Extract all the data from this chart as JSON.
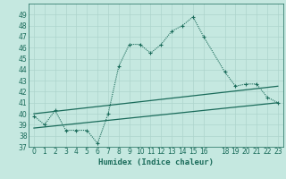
{
  "xlabel": "Humidex (Indice chaleur)",
  "background_color": "#c5e8e0",
  "grid_color": "#aed4cc",
  "line_color": "#1a6b5a",
  "xlim": [
    -0.5,
    23.5
  ],
  "ylim": [
    37,
    50
  ],
  "yticks": [
    37,
    38,
    39,
    40,
    41,
    42,
    43,
    44,
    45,
    46,
    47,
    48,
    49
  ],
  "xticks": [
    0,
    1,
    2,
    3,
    4,
    5,
    6,
    7,
    8,
    9,
    10,
    11,
    12,
    13,
    14,
    15,
    16,
    18,
    19,
    20,
    21,
    22,
    23
  ],
  "xtick_labels": [
    "0",
    "1",
    "2",
    "3",
    "4",
    "5",
    "6",
    "7",
    "8",
    "9",
    "10",
    "11",
    "12",
    "13",
    "14",
    "15",
    "16",
    "18",
    "19",
    "20",
    "21",
    "22",
    "23"
  ],
  "series1_x": [
    0,
    1,
    2,
    3,
    4,
    5,
    6,
    7,
    8,
    9,
    10,
    11,
    12,
    13,
    14,
    15,
    16,
    18,
    19,
    20,
    21,
    22,
    23
  ],
  "series1_y": [
    39.8,
    39.0,
    40.3,
    38.5,
    38.5,
    38.5,
    37.3,
    40.0,
    44.3,
    46.3,
    46.3,
    45.5,
    46.3,
    47.5,
    48.0,
    48.8,
    47.0,
    43.8,
    42.5,
    42.7,
    42.7,
    41.5,
    41.0
  ],
  "series2_x": [
    0,
    23
  ],
  "series2_y": [
    40.0,
    42.5
  ],
  "series3_x": [
    0,
    23
  ],
  "series3_y": [
    38.7,
    41.0
  ],
  "tick_fontsize": 5.5,
  "xlabel_fontsize": 6.5,
  "linewidth": 0.8,
  "trend_linewidth": 0.9,
  "markersize": 3.0,
  "markeredgewidth": 0.8
}
